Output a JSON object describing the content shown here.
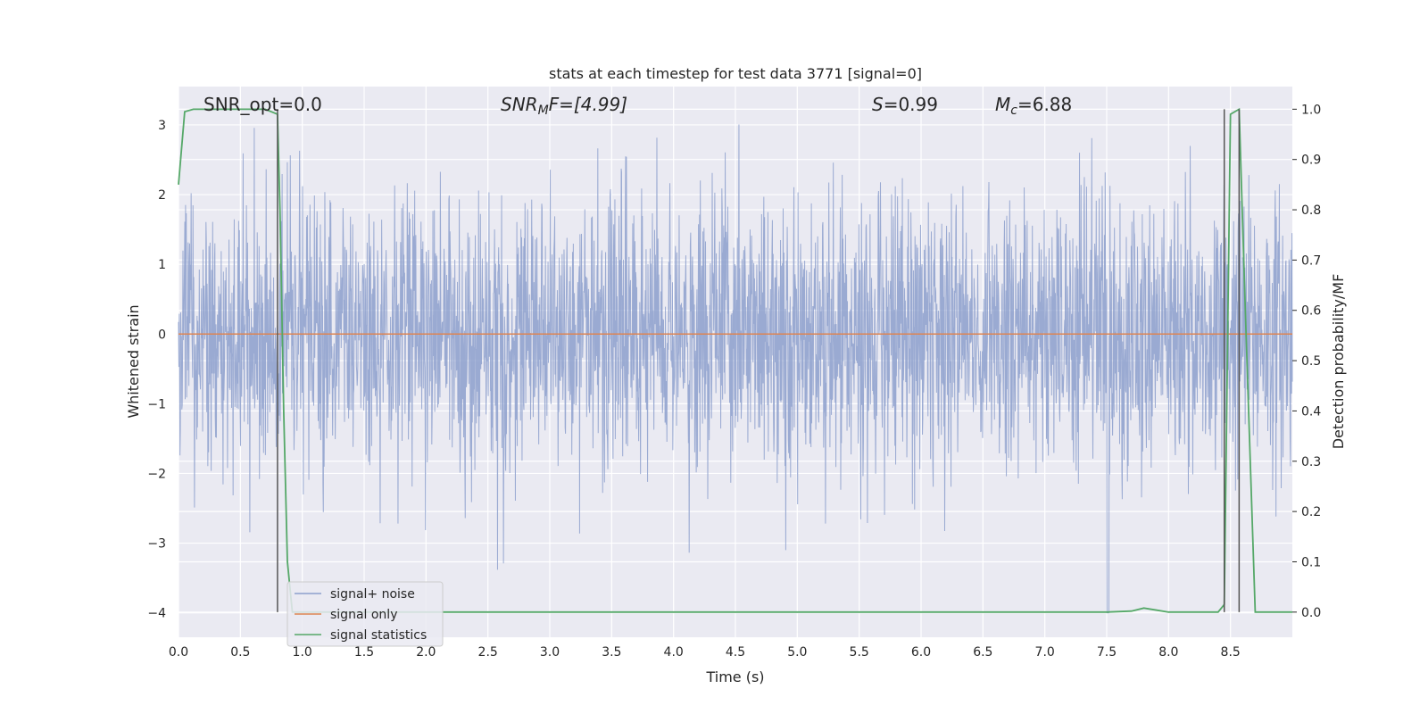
{
  "chart_data": {
    "type": "line",
    "title": "stats at each timestep for test data 3771 [signal=0]",
    "xlabel": "Time (s)",
    "ylabel": "Whitened strain",
    "y2label": "Detection probability/MF",
    "xlim": [
      0.0,
      9.0
    ],
    "ylim": [
      -4.35,
      3.55
    ],
    "y2lim": [
      -0.05,
      1.045
    ],
    "x_ticks": [
      "0.0",
      "0.5",
      "1.0",
      "1.5",
      "2.0",
      "2.5",
      "3.0",
      "3.5",
      "4.0",
      "4.5",
      "5.0",
      "5.5",
      "6.0",
      "6.5",
      "7.0",
      "7.5",
      "8.0",
      "8.5"
    ],
    "y_ticks": [
      "3",
      "2",
      "1",
      "0",
      "−1",
      "−2",
      "−3",
      "−4"
    ],
    "y2_ticks": [
      "1.0",
      "0.9",
      "0.8",
      "0.7",
      "0.6",
      "0.5",
      "0.4",
      "0.3",
      "0.2",
      "0.1",
      "0.0"
    ],
    "annotations": {
      "snr_opt": "SNR_opt=0.0",
      "snr_mf_base": "SNR",
      "snr_mf_sub": "M",
      "snr_mf_rest": "F=[4.99]",
      "s_var": "S",
      "s_rest": "=0.99",
      "mc_var": "M",
      "mc_sub": "c",
      "mc_rest": "=6.88"
    },
    "vlines_x": [
      0.8,
      8.45,
      8.57
    ],
    "legend": {
      "placement": "lower-left",
      "entries": [
        "signal+ noise",
        "signal only",
        "signal statistics"
      ]
    },
    "colors": {
      "noise": "#8c9fcc",
      "signal": "#dd8452",
      "stats": "#55a868",
      "vline": "#555555",
      "plot_bg": "#eaeaf2",
      "grid": "#ffffff"
    },
    "series": [
      {
        "name": "signal+ noise",
        "axis": "left",
        "kind": "noise",
        "x_range": [
          0.0,
          9.0
        ],
        "envelope": [
          -3.4,
          3.2
        ]
      },
      {
        "name": "signal only",
        "axis": "left",
        "x": [
          0.0,
          9.0
        ],
        "y": [
          0.0,
          0.0
        ]
      },
      {
        "name": "signal statistics",
        "axis": "right",
        "x": [
          0.0,
          0.05,
          0.12,
          0.3,
          0.5,
          0.7,
          0.8,
          0.82,
          0.85,
          0.88,
          0.92,
          1.0,
          2.0,
          4.0,
          6.0,
          7.5,
          7.7,
          7.8,
          7.9,
          8.0,
          8.4,
          8.45,
          8.5,
          8.57,
          8.62,
          8.7,
          9.0
        ],
        "y": [
          0.85,
          0.995,
          1.0,
          1.0,
          1.0,
          1.0,
          0.99,
          0.8,
          0.4,
          0.1,
          0.0,
          0.0,
          0.0,
          0.0,
          0.0,
          0.0,
          0.002,
          0.008,
          0.004,
          0.0,
          0.0,
          0.015,
          0.99,
          1.0,
          0.6,
          0.0,
          0.0
        ]
      }
    ]
  }
}
